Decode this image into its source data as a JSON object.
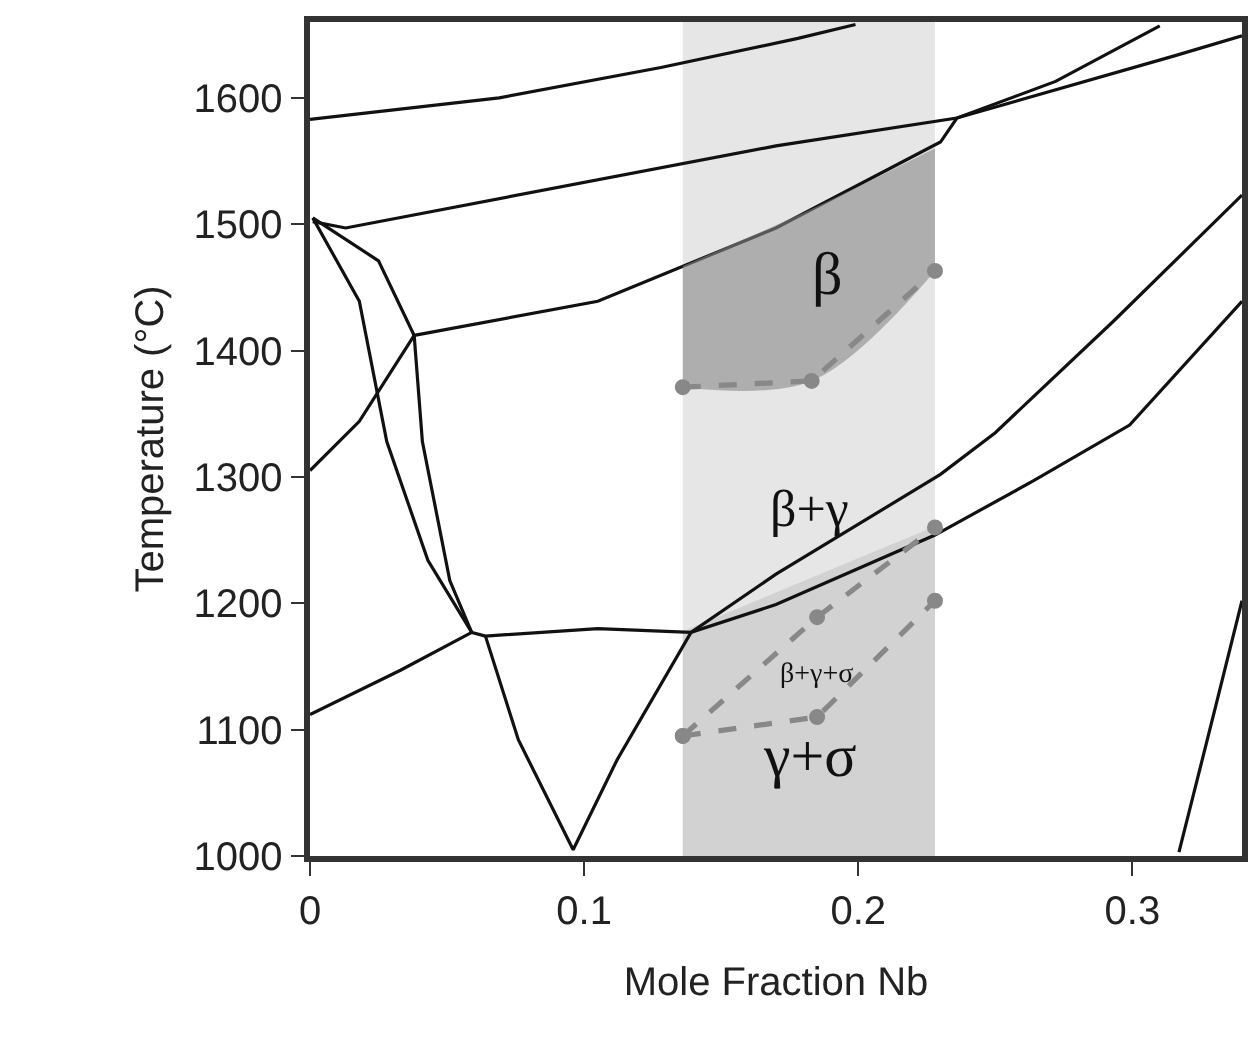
{
  "chart_data": {
    "type": "line",
    "xlabel": "Mole Fraction Nb",
    "ylabel": "Temperature (°C)",
    "xlim": [
      0,
      0.34
    ],
    "ylim": [
      1000,
      1660
    ],
    "xticks": [
      0,
      0.1,
      0.2,
      0.3
    ],
    "yticks": [
      1000,
      1100,
      1200,
      1300,
      1400,
      1500,
      1600
    ],
    "grid": false,
    "line_style": "solid",
    "bands": [
      {
        "axis": "x",
        "from": 0.136,
        "to": 0.228,
        "color": "#e6e6e6"
      }
    ],
    "series": [
      {
        "type": "area",
        "color": "#d2d2d2",
        "x": [
          0.136,
          0.228
        ],
        "values": [
          1177,
          1260
        ]
      },
      {
        "color": "#111111",
        "x": [
          0,
          0.069,
          0.128,
          0.178,
          0.199
        ],
        "values": [
          1583,
          1600,
          1624,
          1647,
          1658
        ]
      },
      {
        "color": "#111111",
        "x": [
          0.001,
          0.013,
          0.17,
          0.236,
          0.315,
          0.34
        ],
        "values": [
          1502,
          1497,
          1562,
          1584,
          1633,
          1649
        ]
      },
      {
        "color": "#111111",
        "x": [
          0.001,
          0.025,
          0.038,
          0.105,
          0.17,
          0.23,
          0.236,
          0.272,
          0.31
        ],
        "values": [
          1505,
          1471,
          1412,
          1439,
          1497,
          1565,
          1584,
          1613,
          1657
        ]
      },
      {
        "color": "#111111",
        "x": [
          0.001,
          0.018,
          0.028,
          0.043,
          0.059
        ],
        "values": [
          1505,
          1439,
          1328,
          1234,
          1177
        ]
      },
      {
        "color": "#111111",
        "x": [
          0.038,
          0.041,
          0.051,
          0.059
        ],
        "values": [
          1412,
          1328,
          1218,
          1177
        ]
      },
      {
        "color": "#111111",
        "x": [
          0,
          0.018,
          0.038
        ],
        "values": [
          1305,
          1344,
          1412
        ]
      },
      {
        "color": "#111111",
        "x": [
          0,
          0.033,
          0.059,
          0.064,
          0.105,
          0.139,
          0.17,
          0.228,
          0.264,
          0.299,
          0.34
        ],
        "values": [
          1112,
          1147,
          1177,
          1174,
          1180,
          1177,
          1199,
          1254,
          1297,
          1341,
          1439
        ]
      },
      {
        "color": "#111111",
        "x": [
          0.064,
          0.076,
          0.096,
          0.112,
          0.139,
          0.17,
          0.23,
          0.25,
          0.293,
          0.34
        ],
        "values": [
          1174,
          1092,
          1005,
          1076,
          1177,
          1223,
          1302,
          1335,
          1423,
          1523
        ]
      },
      {
        "color": "#111111",
        "x": [
          0.317,
          0.33,
          0.34
        ],
        "values": [
          1003,
          1115,
          1202
        ]
      },
      {
        "color": "#888888",
        "line_style": "dashed",
        "marker": "circle",
        "x": [
          0.136,
          0.183,
          0.228
        ],
        "values": [
          1371,
          1376,
          1463
        ],
        "lower": [
          1371,
          1376,
          1463
        ],
        "upper": [
          1467,
          1512,
          1560
        ]
      },
      {
        "color": "#888888",
        "line_style": "dashed",
        "marker": "circle",
        "x": [
          0.136,
          0.185,
          0.228
        ],
        "values": [
          1095,
          1189,
          1260
        ]
      },
      {
        "color": "#888888",
        "line_style": "dashed",
        "marker": "circle",
        "x": [
          0.136,
          0.185,
          0.228
        ],
        "values": [
          1095,
          1110,
          1202
        ]
      }
    ],
    "annotations": [
      "β",
      "β+γ",
      "β+γ+σ",
      "γ+σ"
    ]
  }
}
